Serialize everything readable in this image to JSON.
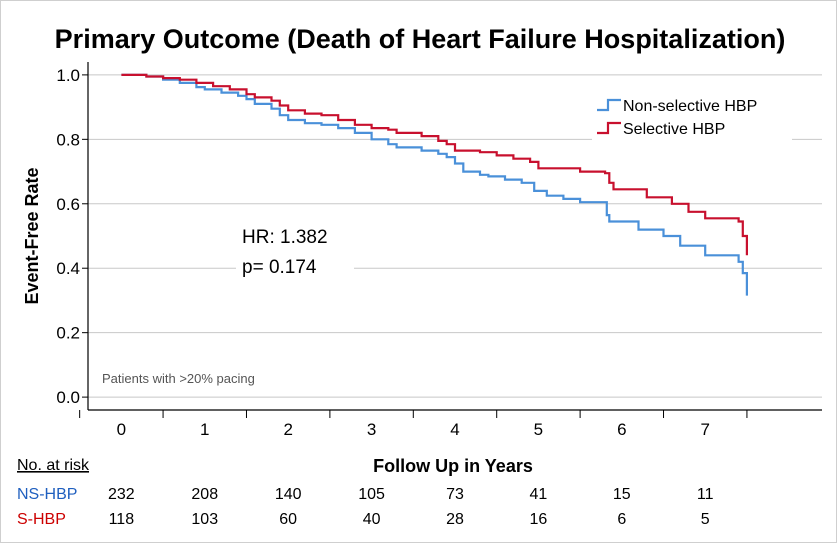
{
  "chart_data": {
    "type": "line",
    "title": "Primary Outcome (Death of Heart Failure Hospitalization)",
    "xlabel": "Follow Up in Years",
    "ylabel": "Event-Free Rate",
    "xlim": [
      -0.4,
      8.4
    ],
    "ylim": [
      -0.04,
      1.04
    ],
    "xticks": [
      "0",
      "1",
      "2",
      "3",
      "4",
      "5",
      "6",
      "7"
    ],
    "yticks": [
      "0.0",
      "0.2",
      "0.4",
      "0.6",
      "0.8",
      "1.0"
    ],
    "grid": "horizontal",
    "legend_position": "top-right",
    "series": [
      {
        "name": "Non-selective HBP",
        "color": "#4a90d9",
        "points": [
          [
            0,
            1.0
          ],
          [
            0.3,
            0.995
          ],
          [
            0.5,
            0.985
          ],
          [
            0.7,
            0.975
          ],
          [
            0.9,
            0.962
          ],
          [
            1.0,
            0.955
          ],
          [
            1.2,
            0.945
          ],
          [
            1.4,
            0.935
          ],
          [
            1.5,
            0.925
          ],
          [
            1.6,
            0.91
          ],
          [
            1.8,
            0.895
          ],
          [
            1.9,
            0.875
          ],
          [
            2.0,
            0.86
          ],
          [
            2.2,
            0.85
          ],
          [
            2.4,
            0.845
          ],
          [
            2.6,
            0.835
          ],
          [
            2.8,
            0.82
          ],
          [
            3.0,
            0.8
          ],
          [
            3.2,
            0.785
          ],
          [
            3.3,
            0.775
          ],
          [
            3.5,
            0.775
          ],
          [
            3.6,
            0.765
          ],
          [
            3.8,
            0.755
          ],
          [
            3.9,
            0.745
          ],
          [
            4.0,
            0.725
          ],
          [
            4.1,
            0.7
          ],
          [
            4.3,
            0.69
          ],
          [
            4.4,
            0.685
          ],
          [
            4.6,
            0.675
          ],
          [
            4.8,
            0.665
          ],
          [
            4.95,
            0.64
          ],
          [
            5.1,
            0.625
          ],
          [
            5.3,
            0.615
          ],
          [
            5.5,
            0.605
          ],
          [
            5.8,
            0.605
          ],
          [
            5.82,
            0.565
          ],
          [
            5.85,
            0.545
          ],
          [
            6.2,
            0.52
          ],
          [
            6.5,
            0.5
          ],
          [
            6.7,
            0.47
          ],
          [
            7.0,
            0.44
          ],
          [
            7.4,
            0.42
          ],
          [
            7.45,
            0.385
          ],
          [
            7.5,
            0.315
          ]
        ]
      },
      {
        "name": "Selective HBP",
        "color": "#c8102e",
        "points": [
          [
            0,
            1.0
          ],
          [
            0.3,
            0.995
          ],
          [
            0.5,
            0.99
          ],
          [
            0.7,
            0.985
          ],
          [
            0.9,
            0.975
          ],
          [
            1.1,
            0.965
          ],
          [
            1.3,
            0.955
          ],
          [
            1.5,
            0.94
          ],
          [
            1.6,
            0.93
          ],
          [
            1.8,
            0.92
          ],
          [
            1.9,
            0.905
          ],
          [
            2.0,
            0.89
          ],
          [
            2.2,
            0.88
          ],
          [
            2.4,
            0.875
          ],
          [
            2.6,
            0.86
          ],
          [
            2.8,
            0.845
          ],
          [
            3.0,
            0.835
          ],
          [
            3.2,
            0.83
          ],
          [
            3.3,
            0.82
          ],
          [
            3.6,
            0.81
          ],
          [
            3.8,
            0.795
          ],
          [
            3.9,
            0.785
          ],
          [
            4.0,
            0.765
          ],
          [
            4.3,
            0.76
          ],
          [
            4.5,
            0.75
          ],
          [
            4.7,
            0.74
          ],
          [
            4.9,
            0.73
          ],
          [
            5.0,
            0.71
          ],
          [
            5.5,
            0.7
          ],
          [
            5.8,
            0.695
          ],
          [
            5.85,
            0.665
          ],
          [
            5.9,
            0.645
          ],
          [
            6.3,
            0.62
          ],
          [
            6.6,
            0.6
          ],
          [
            6.8,
            0.575
          ],
          [
            7.0,
            0.555
          ],
          [
            7.4,
            0.545
          ],
          [
            7.45,
            0.5
          ],
          [
            7.5,
            0.44
          ]
        ]
      }
    ],
    "annotations": [
      "HR: 1.382",
      "p= 0.174",
      "Patients with >20% pacing"
    ],
    "risk_table": {
      "header": "No. at risk",
      "rows": [
        {
          "label": "NS-HBP",
          "color": "#1f5fbf",
          "values": [
            "232",
            "208",
            "140",
            "105",
            "73",
            "41",
            "15",
            "11"
          ]
        },
        {
          "label": "S-HBP",
          "color": "#cc0000",
          "values": [
            "118",
            "103",
            "60",
            "40",
            "28",
            "16",
            "6",
            "5"
          ]
        }
      ]
    }
  }
}
